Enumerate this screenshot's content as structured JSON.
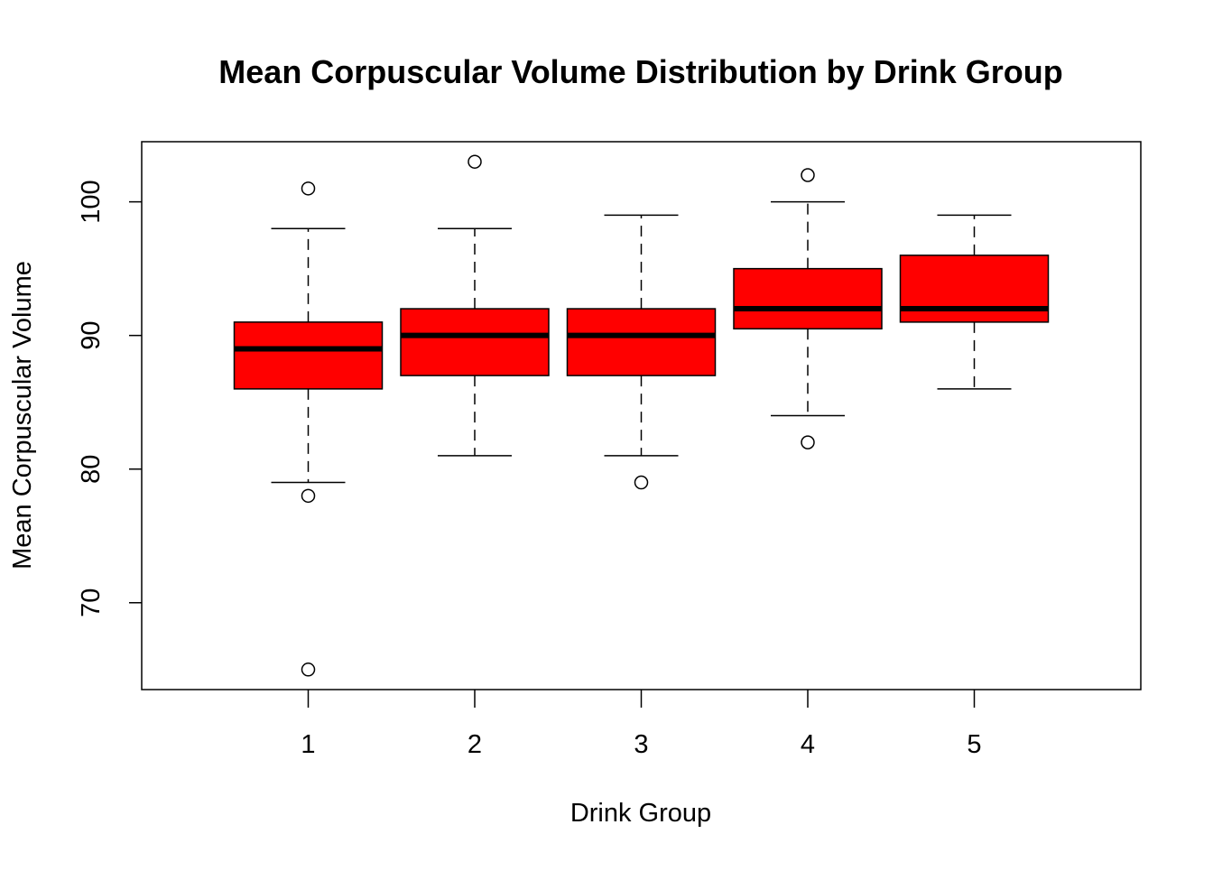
{
  "chart_data": {
    "type": "boxplot",
    "title": "Mean Corpuscular Volume Distribution by Drink Group",
    "xlabel": "Drink Group",
    "ylabel": "Mean Corpuscular Volume",
    "categories": [
      "1",
      "2",
      "3",
      "4",
      "5"
    ],
    "y_ticks": [
      "70",
      "80",
      "90",
      "100"
    ],
    "ylim": [
      63.5,
      104.5
    ],
    "grid": false,
    "legend": "none",
    "box_color": "#FF0000",
    "boxes": [
      {
        "category": "1",
        "whisker_low": 79,
        "q1": 86,
        "median": 89,
        "q3": 91,
        "whisker_high": 98,
        "outliers": [
          101,
          78,
          65
        ]
      },
      {
        "category": "2",
        "whisker_low": 81,
        "q1": 87,
        "median": 90,
        "q3": 92,
        "whisker_high": 98,
        "outliers": [
          103
        ]
      },
      {
        "category": "3",
        "whisker_low": 81,
        "q1": 87,
        "median": 90,
        "q3": 92,
        "whisker_high": 99,
        "outliers": [
          79
        ]
      },
      {
        "category": "4",
        "whisker_low": 84,
        "q1": 90.5,
        "median": 92,
        "q3": 95,
        "whisker_high": 100,
        "outliers": [
          102,
          82
        ]
      },
      {
        "category": "5",
        "whisker_low": 86,
        "q1": 91,
        "median": 92,
        "q3": 96,
        "whisker_high": 99,
        "outliers": []
      }
    ]
  }
}
